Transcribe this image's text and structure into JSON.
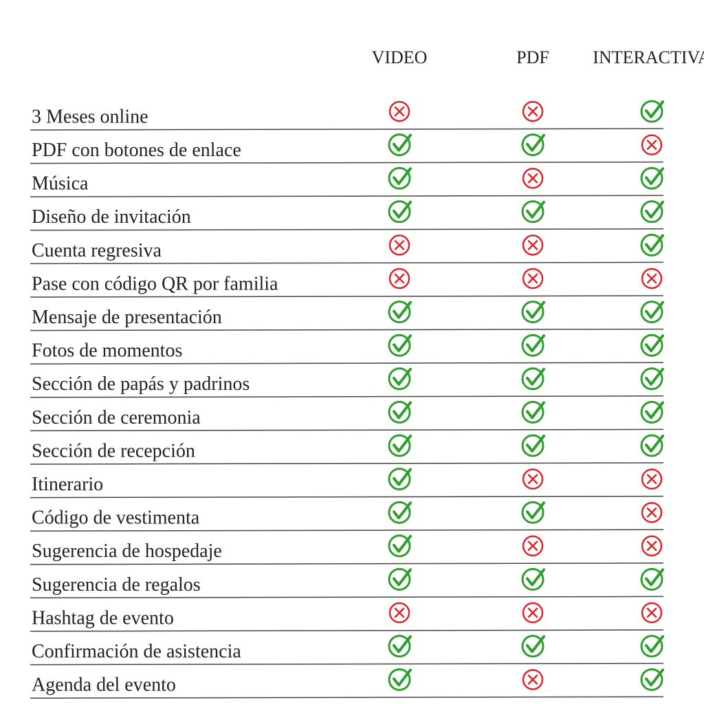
{
  "table": {
    "headers": [
      "VIDEO",
      "PDF",
      "INTERACTIVA"
    ],
    "rows": [
      {
        "label": "3 Meses online",
        "values": [
          false,
          false,
          true
        ]
      },
      {
        "label": "PDF con botones de enlace",
        "values": [
          true,
          true,
          false
        ]
      },
      {
        "label": "Música",
        "values": [
          true,
          false,
          true
        ]
      },
      {
        "label": "Diseño de invitación",
        "values": [
          true,
          true,
          true
        ]
      },
      {
        "label": "Cuenta regresiva",
        "values": [
          false,
          false,
          true
        ]
      },
      {
        "label": "Pase con código QR por familia",
        "values": [
          false,
          false,
          false
        ]
      },
      {
        "label": "Mensaje de presentación",
        "values": [
          true,
          true,
          true
        ]
      },
      {
        "label": "Fotos de momentos",
        "values": [
          true,
          true,
          true
        ]
      },
      {
        "label": "Sección de papás y padrinos",
        "values": [
          true,
          true,
          true
        ]
      },
      {
        "label": "Sección de ceremonia",
        "values": [
          true,
          true,
          true
        ]
      },
      {
        "label": "Sección de recepción",
        "values": [
          true,
          true,
          true
        ]
      },
      {
        "label": "Itinerario",
        "values": [
          true,
          false,
          false
        ]
      },
      {
        "label": "Código de vestimenta",
        "values": [
          true,
          true,
          false
        ]
      },
      {
        "label": "Sugerencia de hospedaje",
        "values": [
          true,
          false,
          false
        ]
      },
      {
        "label": "Sugerencia de regalos",
        "values": [
          true,
          true,
          true
        ]
      },
      {
        "label": "Hashtag de evento",
        "values": [
          false,
          false,
          false
        ]
      },
      {
        "label": "Confirmación de asistencia",
        "values": [
          true,
          true,
          true
        ]
      },
      {
        "label": "Agenda del evento",
        "values": [
          true,
          false,
          true
        ]
      }
    ]
  }
}
